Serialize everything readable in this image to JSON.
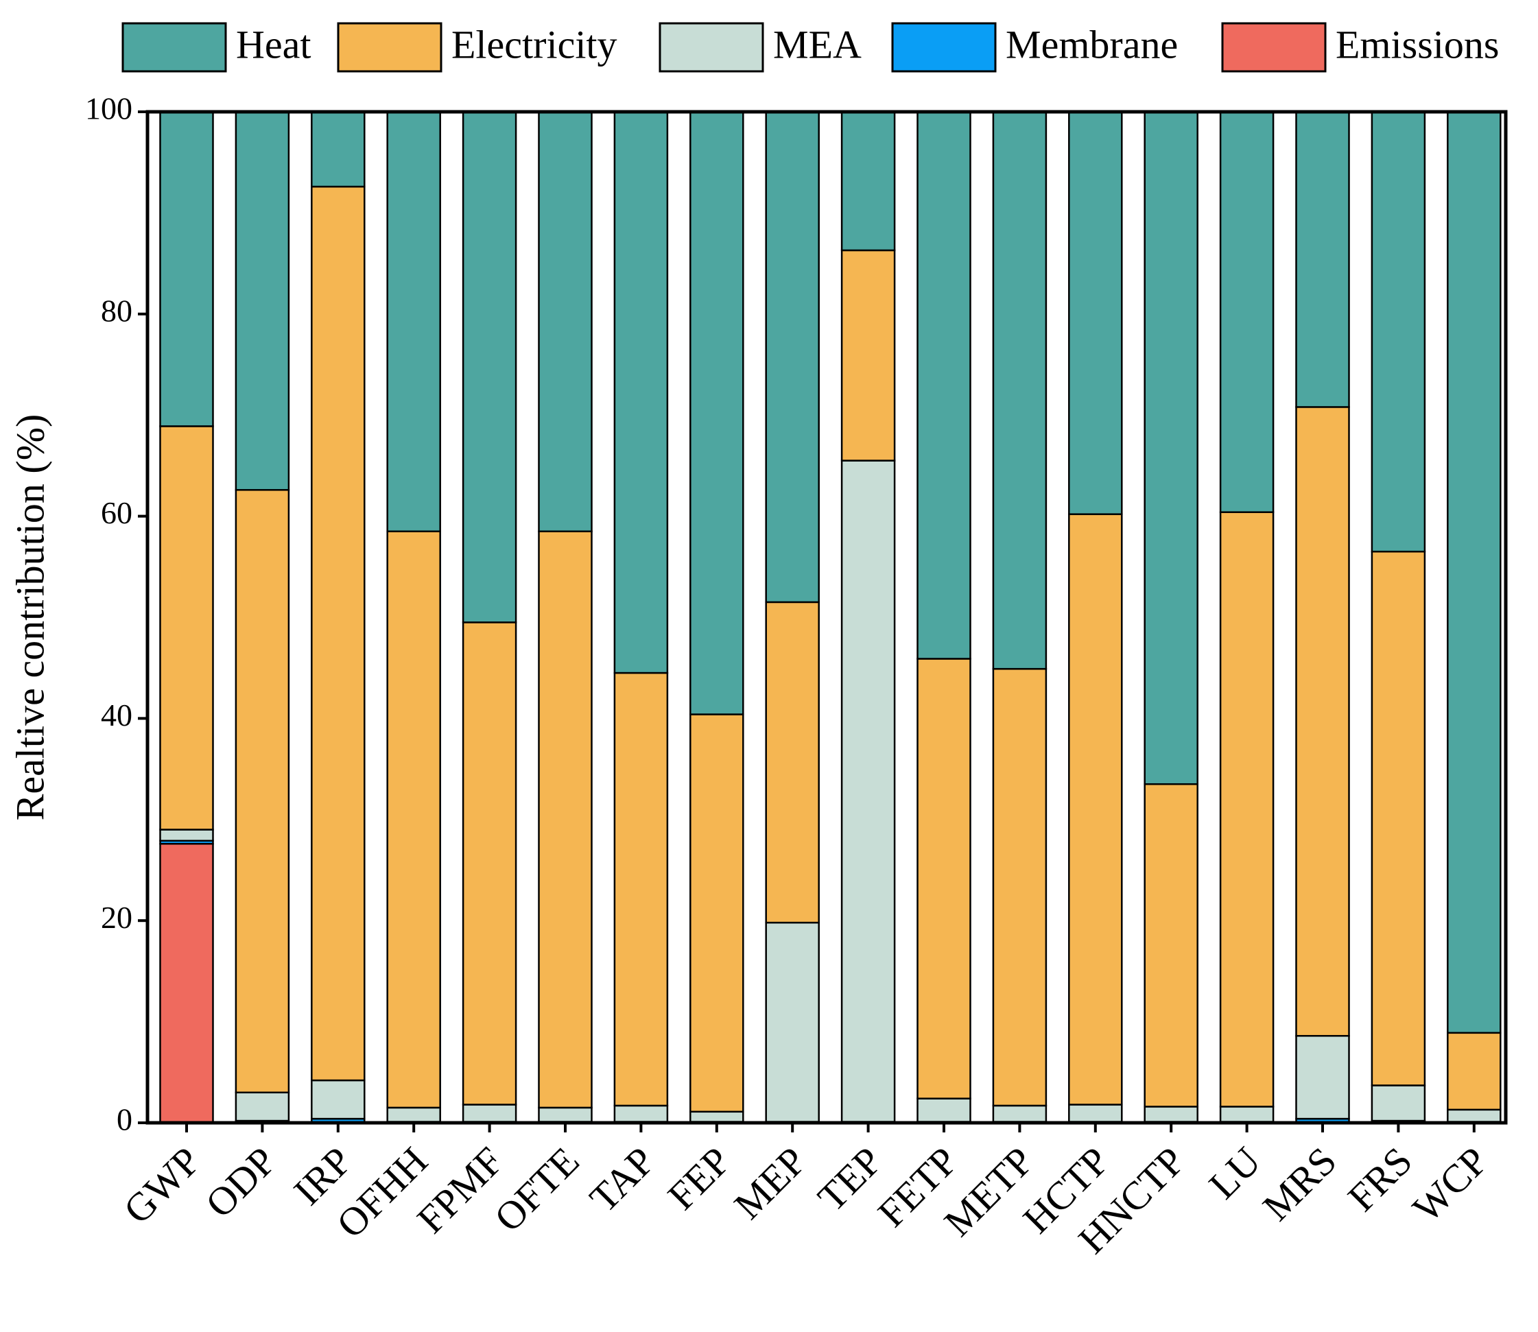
{
  "chart_data": {
    "type": "stacked_bar",
    "y_label": "Realtive contribution (%)",
    "categories": [
      "GWP",
      "ODP",
      "IRP",
      "OFHH",
      "FPMF",
      "OFTE",
      "TAP",
      "FEP",
      "MEP",
      "TEP",
      "FETP",
      "METP",
      "HCTP",
      "HNCTP",
      "LU",
      "MRS",
      "FRS",
      "WCP"
    ],
    "series": [
      {
        "name": "Heat",
        "color": "#4ea6a0",
        "values": [
          31.1,
          37.4,
          7.4,
          41.5,
          50.5,
          41.5,
          55.5,
          59.6,
          48.5,
          13.7,
          54.1,
          55.1,
          39.8,
          66.5,
          39.6,
          29.2,
          43.5,
          91.1
        ]
      },
      {
        "name": "Electricity",
        "color": "#f5b652",
        "values": [
          39.9,
          59.6,
          88.4,
          57.0,
          47.7,
          57.0,
          42.8,
          39.3,
          31.7,
          20.8,
          43.5,
          43.2,
          58.4,
          31.9,
          58.8,
          62.2,
          52.8,
          7.6
        ]
      },
      {
        "name": "MEA",
        "color": "#c8ddd6",
        "values": [
          1.1,
          2.8,
          3.8,
          1.4,
          1.7,
          1.4,
          1.6,
          1.0,
          19.7,
          65.4,
          2.3,
          1.6,
          1.7,
          1.5,
          1.5,
          8.2,
          3.5,
          1.2
        ]
      },
      {
        "name": "Membrane",
        "color": "#0a9ef5",
        "values": [
          0.3,
          0.2,
          0.4,
          0.1,
          0.1,
          0.1,
          0.1,
          0.1,
          0.1,
          0.1,
          0.1,
          0.1,
          0.1,
          0.1,
          0.1,
          0.4,
          0.2,
          0.1
        ]
      },
      {
        "name": "Emissions",
        "color": "#ef6a5e",
        "values": [
          27.6,
          0,
          0,
          0,
          0,
          0,
          0,
          0,
          0,
          0,
          0,
          0,
          0,
          0,
          0,
          0,
          0,
          0
        ]
      }
    ],
    "ylim": [
      0,
      100
    ],
    "yticks": [
      0,
      20,
      40,
      60,
      80,
      100
    ]
  }
}
